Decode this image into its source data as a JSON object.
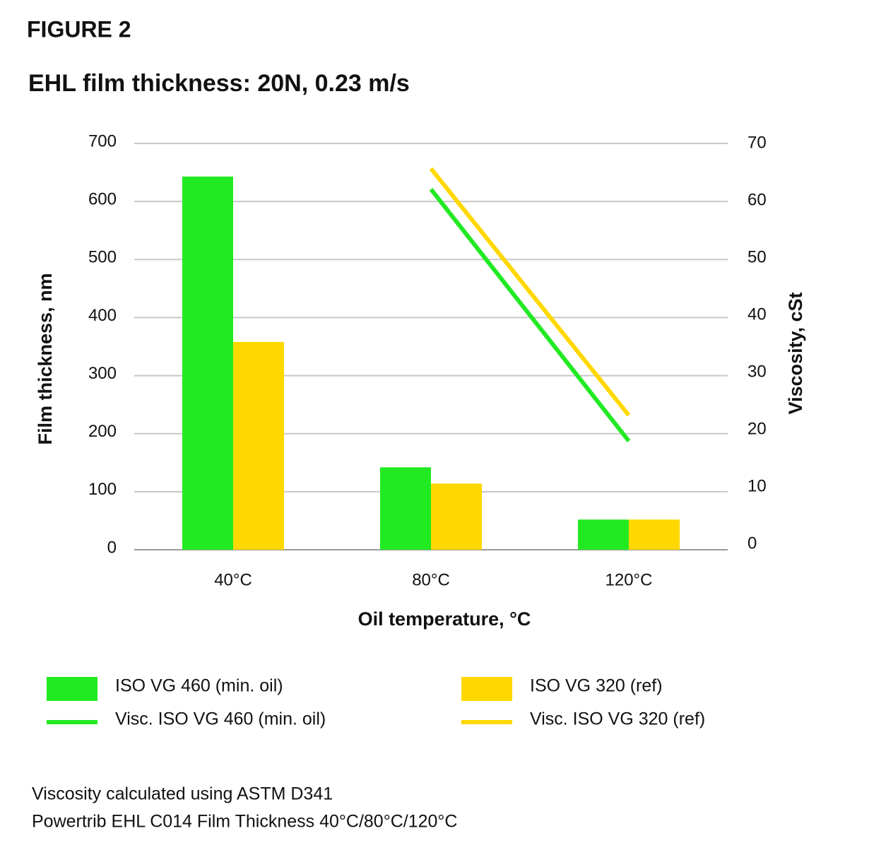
{
  "chart_data": {
    "type": "bar",
    "figure_label": "FIGURE 2",
    "title": "EHL film thickness: 20N, 0.23 m/s",
    "x_label": "Oil temperature, °C",
    "y_label": "Film thickness, nm",
    "y2_label": "Viscosity, cSt",
    "categories": [
      "40°C",
      "80°C",
      "120°C"
    ],
    "series": [
      {
        "name": "ISO VG 460 (min. oil)",
        "type": "bar",
        "color": "#22ea22",
        "values": [
          643,
          142,
          52
        ]
      },
      {
        "name": "ISO VG 320 (ref)",
        "type": "bar",
        "color": "#ffd800",
        "values": [
          358,
          114,
          52
        ]
      },
      {
        "name": "Visc. ISO VG 460 (min. oil)",
        "type": "line",
        "axis": "y2",
        "color": "#22ea22",
        "values": [
          null,
          62,
          18
        ]
      },
      {
        "name": "Visc. ISO VG 320 (ref)",
        "type": "line",
        "axis": "y2",
        "color": "#ffd800",
        "values": [
          null,
          65.6,
          22.5
        ]
      }
    ],
    "ylim": [
      0,
      700
    ],
    "yticks": [
      0,
      100,
      200,
      300,
      400,
      500,
      600,
      700
    ],
    "y2lim": [
      0,
      70
    ],
    "y2ticks": [
      0,
      10,
      20,
      30,
      40,
      50,
      60,
      70
    ],
    "grid": true,
    "notes": [
      "Viscosity calculated using ASTM D341",
      "Powertrib EHL C014 Film Thickness 40°C/80°C/120°C"
    ]
  }
}
